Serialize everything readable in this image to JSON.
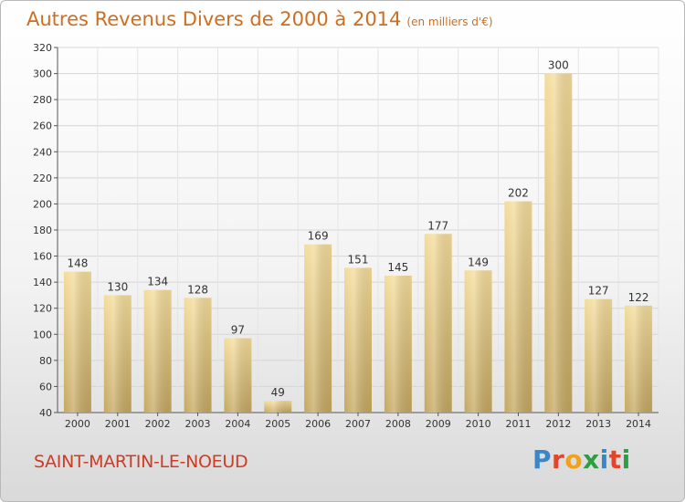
{
  "header": {
    "title": "Autres Revenus Divers de 2000 à 2014",
    "unit": "(en milliers d'€)"
  },
  "footer": {
    "commune": "SAINT-MARTIN-LE-NOEUD",
    "logo": "Proxiti",
    "logo_colors": [
      "#3a86c8",
      "#e2452c",
      "#f1a21d",
      "#2e9d44",
      "#3a86c8",
      "#e2452c",
      "#2e9d44"
    ]
  },
  "chart_data": {
    "type": "bar",
    "categories": [
      "2000",
      "2001",
      "2002",
      "2003",
      "2004",
      "2005",
      "2006",
      "2007",
      "2008",
      "2009",
      "2010",
      "2011",
      "2012",
      "2013",
      "2014"
    ],
    "values": [
      148,
      130,
      134,
      128,
      97,
      49,
      169,
      151,
      145,
      177,
      149,
      202,
      300,
      127,
      122
    ],
    "ylim": [
      40,
      320
    ],
    "yticks": [
      40,
      60,
      80,
      100,
      120,
      140,
      160,
      180,
      200,
      220,
      240,
      260,
      280,
      300,
      320
    ],
    "grid": true,
    "bar_color": "#e6c77e",
    "title": "Autres Revenus Divers de 2000 à 2014",
    "xlabel": "",
    "ylabel": ""
  }
}
